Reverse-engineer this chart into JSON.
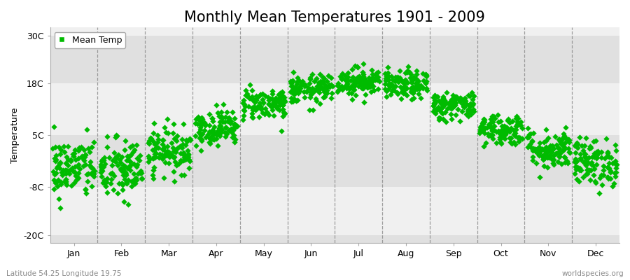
{
  "title": "Monthly Mean Temperatures 1901 - 2009",
  "ylabel": "Temperature",
  "xlabel": "",
  "dot_color": "#00bb00",
  "figure_bg_color": "#ffffff",
  "plot_bg_color": "#f0f0f0",
  "band_color_light": "#f0f0f0",
  "band_color_dark": "#e0e0e0",
  "legend_label": "Mean Temp",
  "legend_marker_color": "#00bb00",
  "bottom_left_text": "Latitude 54.25 Longitude 19.75",
  "bottom_right_text": "worldspecies.org",
  "yticks": [
    -20,
    -8,
    5,
    18,
    30
  ],
  "ylim": [
    -22,
    32
  ],
  "months": [
    "Jan",
    "Feb",
    "Mar",
    "Apr",
    "May",
    "Jun",
    "Jul",
    "Aug",
    "Sep",
    "Oct",
    "Nov",
    "Dec"
  ],
  "month_mean_temps": [
    -3.2,
    -3.8,
    1.2,
    7.0,
    13.0,
    16.5,
    18.5,
    17.5,
    12.5,
    6.5,
    1.5,
    -1.8
  ],
  "month_std_temps": [
    3.8,
    4.0,
    2.8,
    2.2,
    2.0,
    1.8,
    1.8,
    1.8,
    1.8,
    2.0,
    2.5,
    3.0
  ],
  "n_years": 109,
  "marker_size": 18,
  "marker_style": "D",
  "title_fontsize": 15,
  "axis_fontsize": 9,
  "tick_fontsize": 9,
  "legend_fontsize": 9
}
